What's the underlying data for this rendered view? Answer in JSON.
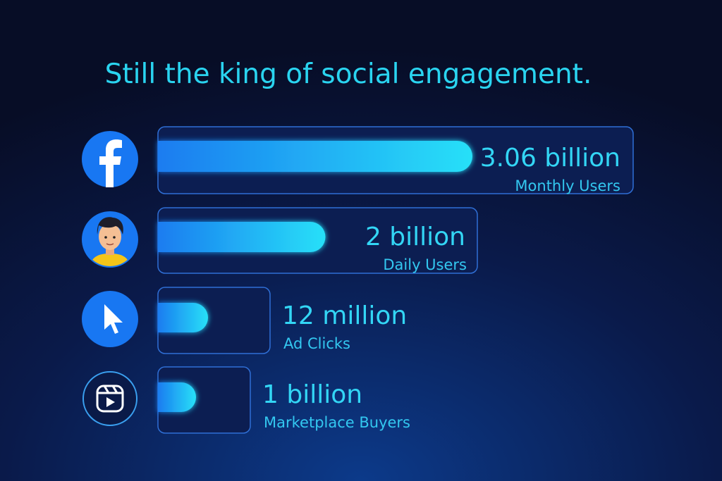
{
  "title": "Still the king of social engagement.",
  "items": [
    {
      "value": "3.06 billion",
      "label": "Monthly Users"
    },
    {
      "value": "2 billion",
      "label": "Daily Users"
    },
    {
      "value": "12 million",
      "label": "Ad Clicks"
    },
    {
      "value": "1 billion",
      "label": "Marketplace Buyers"
    }
  ]
}
